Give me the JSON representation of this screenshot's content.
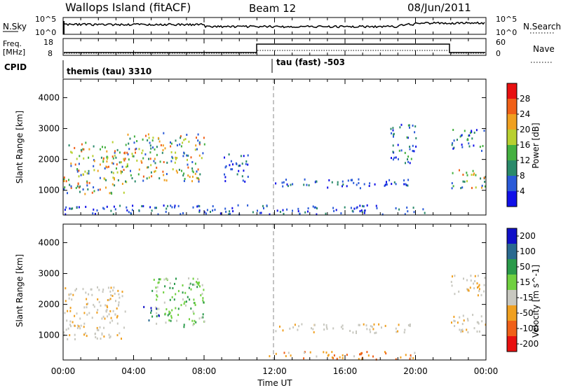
{
  "header": {
    "site": "Wallops Island (fitACF)",
    "beam": "Beam 12",
    "date": "08/Jun/2011"
  },
  "nsky_panel": {
    "left_label": "N.Sky",
    "right_label": "N.Search",
    "ticks_left": [
      "10^5",
      "10^0"
    ],
    "ticks_right": [
      "10^5",
      "10^0"
    ]
  },
  "freq_panel": {
    "left_label_1": "Freq.",
    "left_label_2": "[MHz]",
    "right_label": "Nave",
    "ticks_left": [
      "18",
      "8"
    ],
    "ticks_right": [
      "60",
      "0"
    ]
  },
  "cpid_panel": {
    "label": "CPID",
    "modes": [
      {
        "name": "themis (tau) 3310",
        "start_hour": 0
      },
      {
        "name": "tau (fast) -503",
        "start_hour": 11.9
      }
    ]
  },
  "chart_data": [
    {
      "type": "heatmap",
      "parameter": "Power",
      "ylabel": "Slant Range [km]",
      "xlabel": "Time UT",
      "x_ticks": [
        "00:00",
        "04:00",
        "08:00",
        "12:00",
        "16:00",
        "20:00",
        "00:00"
      ],
      "x_hours": [
        0,
        4,
        8,
        12,
        16,
        20,
        24
      ],
      "y_ticks": [
        1000,
        2000,
        3000,
        4000
      ],
      "ylim": [
        200,
        4600
      ],
      "xlim": [
        0,
        24
      ],
      "colorbar": {
        "label": "Power [dB]",
        "ticks": [
          "4",
          "8",
          "12",
          "16",
          "20",
          "24",
          "28"
        ],
        "colors": [
          "#1010e8",
          "#2a5ad8",
          "#2a8a6a",
          "#44b040",
          "#b8d030",
          "#f0a020",
          "#f06018",
          "#e81010"
        ]
      },
      "echo_regions": [
        {
          "t0": 0.0,
          "t1": 3.5,
          "r0": 900,
          "r1": 2600,
          "level": "strong"
        },
        {
          "t0": 3.5,
          "t1": 8.0,
          "r0": 1300,
          "r1": 2900,
          "level": "strong"
        },
        {
          "t0": 9.0,
          "t1": 10.5,
          "r0": 1300,
          "r1": 2200,
          "level": "weak"
        },
        {
          "t0": 12.0,
          "t1": 20.0,
          "r0": 1100,
          "r1": 1400,
          "level": "weak"
        },
        {
          "t0": 0.0,
          "t1": 20.5,
          "r0": 250,
          "r1": 550,
          "level": "weak"
        },
        {
          "t0": 18.5,
          "t1": 20.0,
          "r0": 1900,
          "r1": 3200,
          "level": "moderate"
        },
        {
          "t0": 21.8,
          "t1": 24.0,
          "r0": 1100,
          "r1": 1700,
          "level": "strong"
        },
        {
          "t0": 22.0,
          "t1": 24.0,
          "r0": 2300,
          "r1": 3000,
          "level": "moderate"
        }
      ]
    },
    {
      "type": "heatmap",
      "parameter": "Velocity",
      "ylabel": "Slant Range [km]",
      "xlabel": "Time UT",
      "x_ticks": [
        "00:00",
        "04:00",
        "08:00",
        "12:00",
        "16:00",
        "20:00",
        "00:00"
      ],
      "x_hours": [
        0,
        4,
        8,
        12,
        16,
        20,
        24
      ],
      "y_ticks": [
        1000,
        2000,
        3000,
        4000
      ],
      "ylim": [
        200,
        4600
      ],
      "xlim": [
        0,
        24
      ],
      "colorbar": {
        "label": "Velocity [m s^-1]",
        "ticks": [
          "200",
          "100",
          "50",
          "15",
          "-15",
          "-50",
          "-100",
          "-200"
        ],
        "colors": [
          "#1010c8",
          "#2a6a90",
          "#2a9a4a",
          "#70d040",
          "#c8c8c0",
          "#f0a020",
          "#f06018",
          "#e81010"
        ]
      },
      "echo_regions": [
        {
          "t0": 0.0,
          "t1": 3.5,
          "r0": 900,
          "r1": 2600,
          "level": "ground"
        },
        {
          "t0": 4.5,
          "t1": 5.5,
          "r0": 1500,
          "r1": 2000,
          "level": "toward"
        },
        {
          "t0": 5.0,
          "t1": 8.0,
          "r0": 1300,
          "r1": 2900,
          "level": "slow"
        },
        {
          "t0": 12.0,
          "t1": 20.0,
          "r0": 1100,
          "r1": 1400,
          "level": "ground"
        },
        {
          "t0": 11.5,
          "t1": 20.0,
          "r0": 250,
          "r1": 500,
          "level": "away"
        },
        {
          "t0": 21.8,
          "t1": 24.0,
          "r0": 1100,
          "r1": 1700,
          "level": "ground"
        },
        {
          "t0": 22.0,
          "t1": 24.0,
          "r0": 2300,
          "r1": 3000,
          "level": "ground"
        }
      ]
    }
  ]
}
